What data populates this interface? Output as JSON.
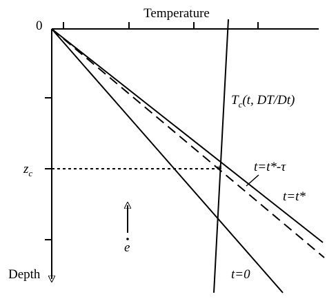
{
  "axes": {
    "x_label": "Temperature",
    "y_label": "Depth",
    "origin": "0"
  },
  "labels": {
    "critical_temperature": {
      "main": "T",
      "sub": "c",
      "rest": "(t, DT/Dt)"
    },
    "critical_depth": {
      "main": "z",
      "sub": "c"
    },
    "geotherm_before": "t=t*-τ",
    "geotherm_now": "t=t*",
    "geotherm_initial": "t=0",
    "erosion_vector": "e"
  }
}
